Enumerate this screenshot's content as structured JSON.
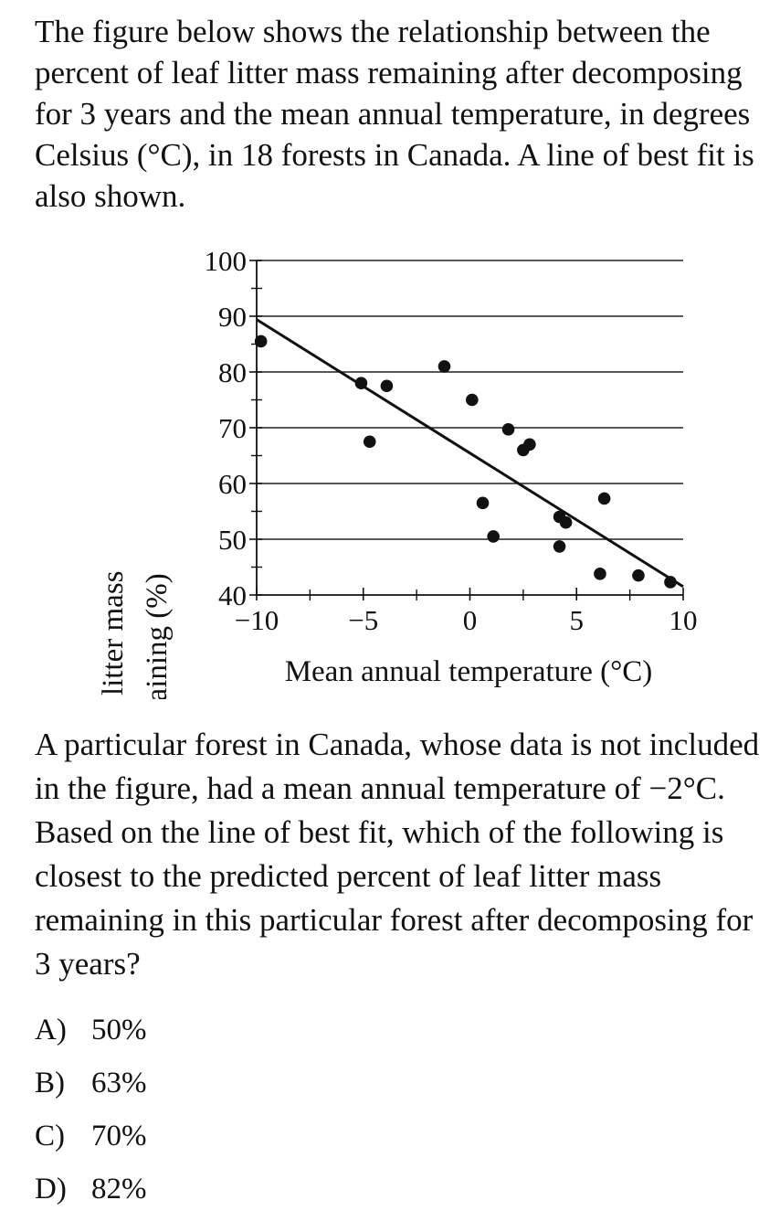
{
  "question": {
    "stem": "The figure below shows the relationship between the percent of leaf litter mass remaining after decomposing for 3 years and the mean annual temperature, in degrees Celsius (°C), in 18 forests in Canada. A line of best fit is also shown.",
    "prompt": "A particular forest in Canada, whose data is not included in the figure, had a mean annual temperature of −2°C. Based on the line of best fit, which of the following is closest to the predicted percent of leaf litter mass remaining in this particular forest after decomposing for 3 years?",
    "choices": [
      {
        "letter": "A)",
        "text": "50%"
      },
      {
        "letter": "B)",
        "text": "63%"
      },
      {
        "letter": "C)",
        "text": "70%"
      },
      {
        "letter": "D)",
        "text": "82%"
      }
    ]
  },
  "chart_data": {
    "type": "scatter",
    "title": "",
    "xlabel": "Mean annual temperature (°C)",
    "ylabel_lines": [
      "Leaf litter mass",
      "remaining (%)"
    ],
    "xlim": [
      -10,
      10
    ],
    "ylim": [
      40,
      100
    ],
    "x_tick_values": [
      -10,
      -5,
      0,
      5,
      10
    ],
    "x_tick_labels": [
      "−10",
      "−5",
      "0",
      "5",
      "10"
    ],
    "x_minor_ticks": [
      -7.5,
      -2.5,
      2.5,
      7.5
    ],
    "y_tick_values": [
      40,
      50,
      60,
      70,
      80,
      90,
      100
    ],
    "y_tick_labels": [
      "40",
      "50",
      "60",
      "70",
      "80",
      "90",
      "100"
    ],
    "y_minor_ticks": [
      45,
      55,
      65,
      75,
      85,
      95
    ],
    "grid": "horizontal",
    "points": [
      {
        "x": -9.8,
        "y": 85.5
      },
      {
        "x": -5.1,
        "y": 78.0
      },
      {
        "x": -4.7,
        "y": 67.5
      },
      {
        "x": -3.9,
        "y": 77.5
      },
      {
        "x": -1.2,
        "y": 81.0
      },
      {
        "x": 0.1,
        "y": 75.0
      },
      {
        "x": 0.6,
        "y": 56.5
      },
      {
        "x": 1.1,
        "y": 50.5
      },
      {
        "x": 1.8,
        "y": 69.7
      },
      {
        "x": 2.5,
        "y": 66.0
      },
      {
        "x": 2.8,
        "y": 67.0
      },
      {
        "x": 4.2,
        "y": 54.0
      },
      {
        "x": 4.2,
        "y": 48.7
      },
      {
        "x": 4.5,
        "y": 53.0
      },
      {
        "x": 6.1,
        "y": 43.8
      },
      {
        "x": 6.3,
        "y": 57.3
      },
      {
        "x": 7.9,
        "y": 43.5
      },
      {
        "x": 9.4,
        "y": 42.3
      }
    ],
    "best_fit_line": {
      "x1": -10,
      "y1": 89.4,
      "x2": 10,
      "y2": 41.5
    }
  }
}
